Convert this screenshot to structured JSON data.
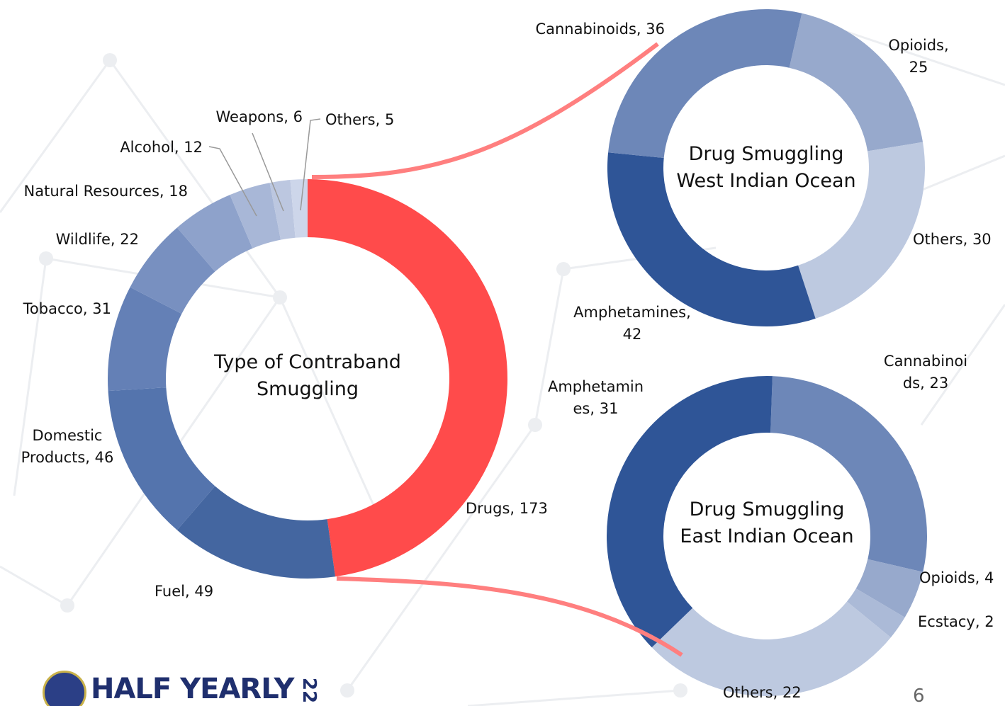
{
  "chart_data": [
    {
      "type": "donut",
      "title": "Type of Contraband Smuggling",
      "categories": [
        "Drugs",
        "Fuel",
        "Domestic Products",
        "Tobacco",
        "Wildlife",
        "Natural Resources",
        "Alcohol",
        "Weapons",
        "Others"
      ],
      "values": [
        173,
        49,
        46,
        31,
        22,
        18,
        12,
        6,
        5
      ],
      "colors": [
        "#ff4b4b",
        "#4466a0",
        "#5474ad",
        "#6480b6",
        "#7890c0",
        "#8ea2cb",
        "#a8b7d7",
        "#bcc7e0",
        "#cdd6ea"
      ]
    },
    {
      "type": "donut",
      "title": "Drug Smuggling West Indian Ocean",
      "categories": [
        "Opioids",
        "Others",
        "Amphetamines",
        "Cannabinoids"
      ],
      "values": [
        25,
        30,
        42,
        36
      ],
      "colors": [
        "#97a9cc",
        "#bdc9e0",
        "#2f5597",
        "#6d87b8"
      ]
    },
    {
      "type": "donut",
      "title": "Drug Smuggling East Indian Ocean",
      "categories": [
        "Cannabinoids",
        "Opioids",
        "Ecstacy",
        "Others",
        "Amphetamines"
      ],
      "values": [
        23,
        4,
        2,
        22,
        31
      ],
      "colors": [
        "#6d87b8",
        "#97a9cc",
        "#abbad7",
        "#bdc9e0",
        "#2f5597"
      ]
    }
  ],
  "footer": {
    "logo_text": "HALF YEARLY",
    "logo_year": "22",
    "page_number": "6"
  }
}
